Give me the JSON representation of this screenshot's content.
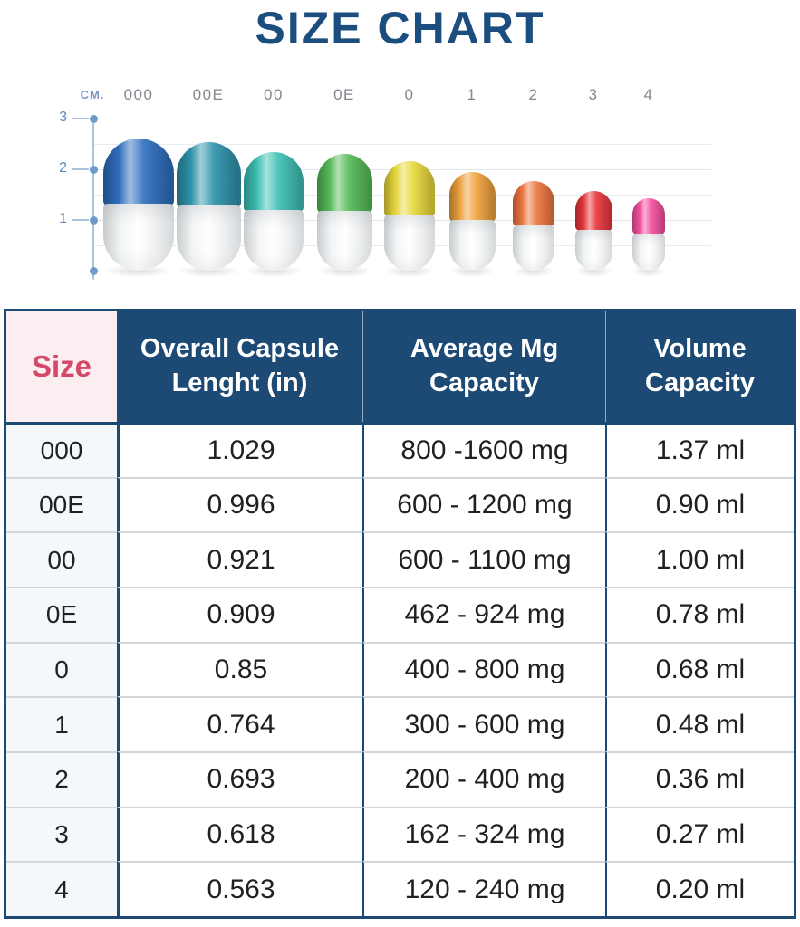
{
  "page": {
    "title": "SIZE CHART"
  },
  "colors": {
    "navy": "#1c4a74",
    "title_blue": "#1b4e7e",
    "pink_text": "#d4486a",
    "pink_bg": "#fcedf0",
    "size_cell_bg": "#f5f8fb",
    "axis_blue": "#5c88ba",
    "label_gray": "#82878e",
    "grid_line": "#e9ecef",
    "row_divider": "#d4d7da"
  },
  "chart": {
    "unit_label": "CM.",
    "axis_ticks": [
      3,
      2,
      1
    ],
    "capsules": [
      {
        "label": "000",
        "color": "#2f6fbe",
        "length_cm": 2.61
      },
      {
        "label": "00E",
        "color": "#2e93ab",
        "length_cm": 2.53
      },
      {
        "label": "00",
        "color": "#3ec0b4",
        "length_cm": 2.34
      },
      {
        "label": "0E",
        "color": "#55bb57",
        "length_cm": 2.31
      },
      {
        "label": "0",
        "color": "#e8d83c",
        "length_cm": 2.16
      },
      {
        "label": "1",
        "color": "#f0a23e",
        "length_cm": 1.94
      },
      {
        "label": "2",
        "color": "#ed7540",
        "length_cm": 1.76
      },
      {
        "label": "3",
        "color": "#e8363c",
        "length_cm": 1.57
      },
      {
        "label": "4",
        "color": "#f4509f",
        "length_cm": 1.43
      }
    ]
  },
  "table": {
    "headers": {
      "size": "Size",
      "length": "Overall Capsule Lenght (in)",
      "mg": "Average Mg Capacity",
      "volume": "Volume Capacity"
    },
    "rows": [
      {
        "size": "000",
        "length": "1.029",
        "mg": "800 -1600 mg",
        "volume": "1.37 ml"
      },
      {
        "size": "00E",
        "length": "0.996",
        "mg": "600 - 1200 mg",
        "volume": "0.90 ml"
      },
      {
        "size": "00",
        "length": "0.921",
        "mg": "600 - 1100 mg",
        "volume": "1.00 ml"
      },
      {
        "size": "0E",
        "length": "0.909",
        "mg": "462 - 924 mg",
        "volume": "0.78 ml"
      },
      {
        "size": "0",
        "length": "0.85",
        "mg": "400 - 800 mg",
        "volume": "0.68 ml"
      },
      {
        "size": "1",
        "length": "0.764",
        "mg": "300 - 600 mg",
        "volume": "0.48 ml"
      },
      {
        "size": "2",
        "length": "0.693",
        "mg": "200 - 400 mg",
        "volume": "0.36 ml"
      },
      {
        "size": "3",
        "length": "0.618",
        "mg": "162 - 324 mg",
        "volume": "0.27 ml"
      },
      {
        "size": "4",
        "length": "0.563",
        "mg": "120 - 240 mg",
        "volume": "0.20 ml"
      }
    ]
  },
  "chart_data": {
    "type": "bar",
    "title": "SIZE CHART",
    "categories": [
      "000",
      "00E",
      "00",
      "0E",
      "0",
      "1",
      "2",
      "3",
      "4"
    ],
    "series": [
      {
        "name": "Overall Capsule Lenght (in)",
        "values": [
          1.029,
          0.996,
          0.921,
          0.909,
          0.85,
          0.764,
          0.693,
          0.618,
          0.563
        ]
      },
      {
        "name": "Capsule Length (cm, axis)",
        "values": [
          2.61,
          2.53,
          2.34,
          2.31,
          2.16,
          1.94,
          1.76,
          1.57,
          1.43
        ]
      },
      {
        "name": "Average Mg Capacity (mg)",
        "values": [
          "800-1600",
          "600-1200",
          "600-1100",
          "462-924",
          "400-800",
          "300-600",
          "200-400",
          "162-324",
          "120-240"
        ]
      },
      {
        "name": "Volume Capacity (ml)",
        "values": [
          1.37,
          0.9,
          1.0,
          0.78,
          0.68,
          0.48,
          0.36,
          0.27,
          0.2
        ]
      }
    ],
    "ylabel": "CM.",
    "ylim": [
      0,
      3
    ],
    "yticks": [
      1,
      2,
      3
    ],
    "grid": true,
    "legend_position": "none"
  }
}
